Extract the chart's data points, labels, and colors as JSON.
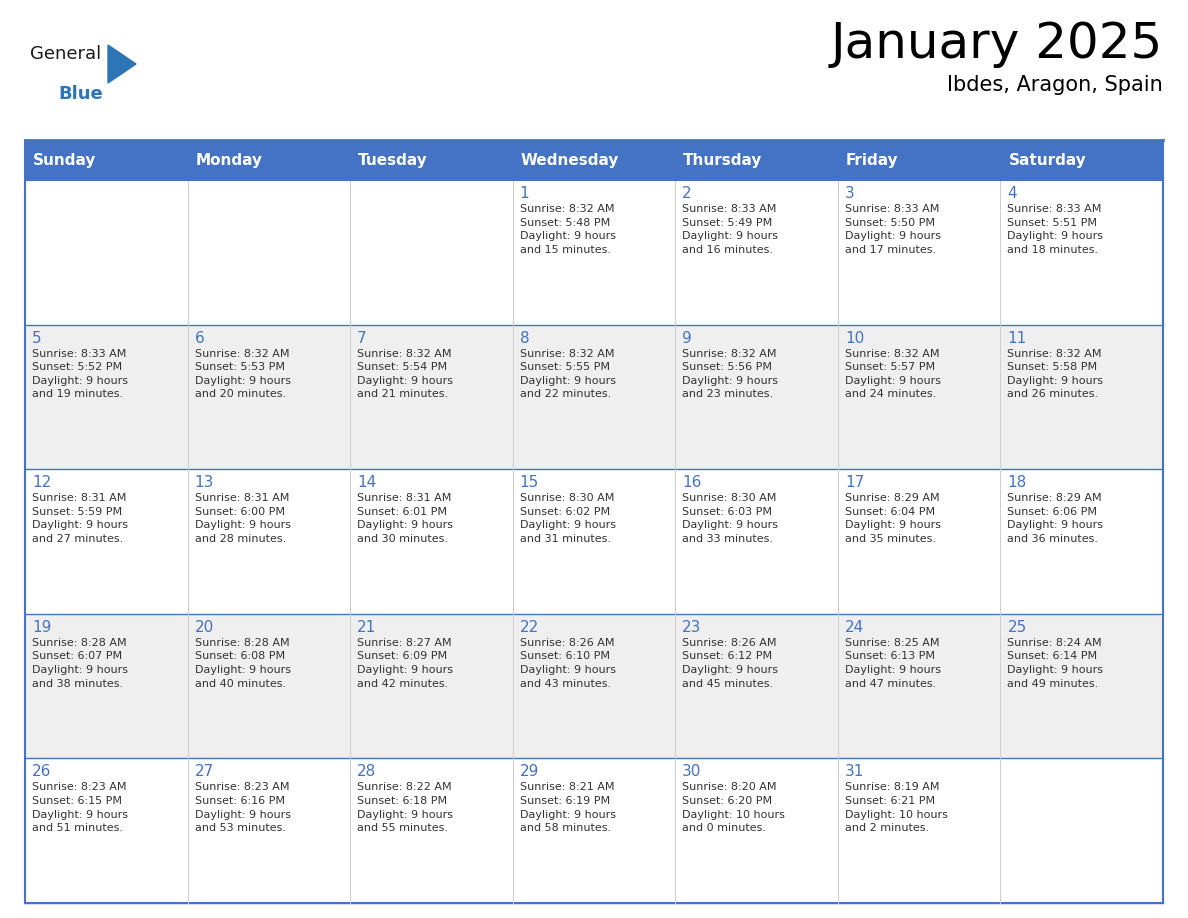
{
  "title": "January 2025",
  "subtitle": "Ibdes, Aragon, Spain",
  "days_of_week": [
    "Sunday",
    "Monday",
    "Tuesday",
    "Wednesday",
    "Thursday",
    "Friday",
    "Saturday"
  ],
  "header_bg": "#4472C4",
  "header_text": "#FFFFFF",
  "cell_bg_white": "#FFFFFF",
  "cell_bg_gray": "#EFEFEF",
  "day_number_color": "#4472C4",
  "text_color": "#333333",
  "border_color": "#4472C4",
  "calendar_data": [
    [
      {
        "day": null,
        "info": null
      },
      {
        "day": null,
        "info": null
      },
      {
        "day": null,
        "info": null
      },
      {
        "day": 1,
        "info": "Sunrise: 8:32 AM\nSunset: 5:48 PM\nDaylight: 9 hours\nand 15 minutes."
      },
      {
        "day": 2,
        "info": "Sunrise: 8:33 AM\nSunset: 5:49 PM\nDaylight: 9 hours\nand 16 minutes."
      },
      {
        "day": 3,
        "info": "Sunrise: 8:33 AM\nSunset: 5:50 PM\nDaylight: 9 hours\nand 17 minutes."
      },
      {
        "day": 4,
        "info": "Sunrise: 8:33 AM\nSunset: 5:51 PM\nDaylight: 9 hours\nand 18 minutes."
      }
    ],
    [
      {
        "day": 5,
        "info": "Sunrise: 8:33 AM\nSunset: 5:52 PM\nDaylight: 9 hours\nand 19 minutes."
      },
      {
        "day": 6,
        "info": "Sunrise: 8:32 AM\nSunset: 5:53 PM\nDaylight: 9 hours\nand 20 minutes."
      },
      {
        "day": 7,
        "info": "Sunrise: 8:32 AM\nSunset: 5:54 PM\nDaylight: 9 hours\nand 21 minutes."
      },
      {
        "day": 8,
        "info": "Sunrise: 8:32 AM\nSunset: 5:55 PM\nDaylight: 9 hours\nand 22 minutes."
      },
      {
        "day": 9,
        "info": "Sunrise: 8:32 AM\nSunset: 5:56 PM\nDaylight: 9 hours\nand 23 minutes."
      },
      {
        "day": 10,
        "info": "Sunrise: 8:32 AM\nSunset: 5:57 PM\nDaylight: 9 hours\nand 24 minutes."
      },
      {
        "day": 11,
        "info": "Sunrise: 8:32 AM\nSunset: 5:58 PM\nDaylight: 9 hours\nand 26 minutes."
      }
    ],
    [
      {
        "day": 12,
        "info": "Sunrise: 8:31 AM\nSunset: 5:59 PM\nDaylight: 9 hours\nand 27 minutes."
      },
      {
        "day": 13,
        "info": "Sunrise: 8:31 AM\nSunset: 6:00 PM\nDaylight: 9 hours\nand 28 minutes."
      },
      {
        "day": 14,
        "info": "Sunrise: 8:31 AM\nSunset: 6:01 PM\nDaylight: 9 hours\nand 30 minutes."
      },
      {
        "day": 15,
        "info": "Sunrise: 8:30 AM\nSunset: 6:02 PM\nDaylight: 9 hours\nand 31 minutes."
      },
      {
        "day": 16,
        "info": "Sunrise: 8:30 AM\nSunset: 6:03 PM\nDaylight: 9 hours\nand 33 minutes."
      },
      {
        "day": 17,
        "info": "Sunrise: 8:29 AM\nSunset: 6:04 PM\nDaylight: 9 hours\nand 35 minutes."
      },
      {
        "day": 18,
        "info": "Sunrise: 8:29 AM\nSunset: 6:06 PM\nDaylight: 9 hours\nand 36 minutes."
      }
    ],
    [
      {
        "day": 19,
        "info": "Sunrise: 8:28 AM\nSunset: 6:07 PM\nDaylight: 9 hours\nand 38 minutes."
      },
      {
        "day": 20,
        "info": "Sunrise: 8:28 AM\nSunset: 6:08 PM\nDaylight: 9 hours\nand 40 minutes."
      },
      {
        "day": 21,
        "info": "Sunrise: 8:27 AM\nSunset: 6:09 PM\nDaylight: 9 hours\nand 42 minutes."
      },
      {
        "day": 22,
        "info": "Sunrise: 8:26 AM\nSunset: 6:10 PM\nDaylight: 9 hours\nand 43 minutes."
      },
      {
        "day": 23,
        "info": "Sunrise: 8:26 AM\nSunset: 6:12 PM\nDaylight: 9 hours\nand 45 minutes."
      },
      {
        "day": 24,
        "info": "Sunrise: 8:25 AM\nSunset: 6:13 PM\nDaylight: 9 hours\nand 47 minutes."
      },
      {
        "day": 25,
        "info": "Sunrise: 8:24 AM\nSunset: 6:14 PM\nDaylight: 9 hours\nand 49 minutes."
      }
    ],
    [
      {
        "day": 26,
        "info": "Sunrise: 8:23 AM\nSunset: 6:15 PM\nDaylight: 9 hours\nand 51 minutes."
      },
      {
        "day": 27,
        "info": "Sunrise: 8:23 AM\nSunset: 6:16 PM\nDaylight: 9 hours\nand 53 minutes."
      },
      {
        "day": 28,
        "info": "Sunrise: 8:22 AM\nSunset: 6:18 PM\nDaylight: 9 hours\nand 55 minutes."
      },
      {
        "day": 29,
        "info": "Sunrise: 8:21 AM\nSunset: 6:19 PM\nDaylight: 9 hours\nand 58 minutes."
      },
      {
        "day": 30,
        "info": "Sunrise: 8:20 AM\nSunset: 6:20 PM\nDaylight: 10 hours\nand 0 minutes."
      },
      {
        "day": 31,
        "info": "Sunrise: 8:19 AM\nSunset: 6:21 PM\nDaylight: 10 hours\nand 2 minutes."
      },
      {
        "day": null,
        "info": null
      }
    ]
  ],
  "logo_general_color": "#1a1a1a",
  "logo_blue_color": "#2E75B6",
  "logo_triangle_color": "#2E75B6"
}
